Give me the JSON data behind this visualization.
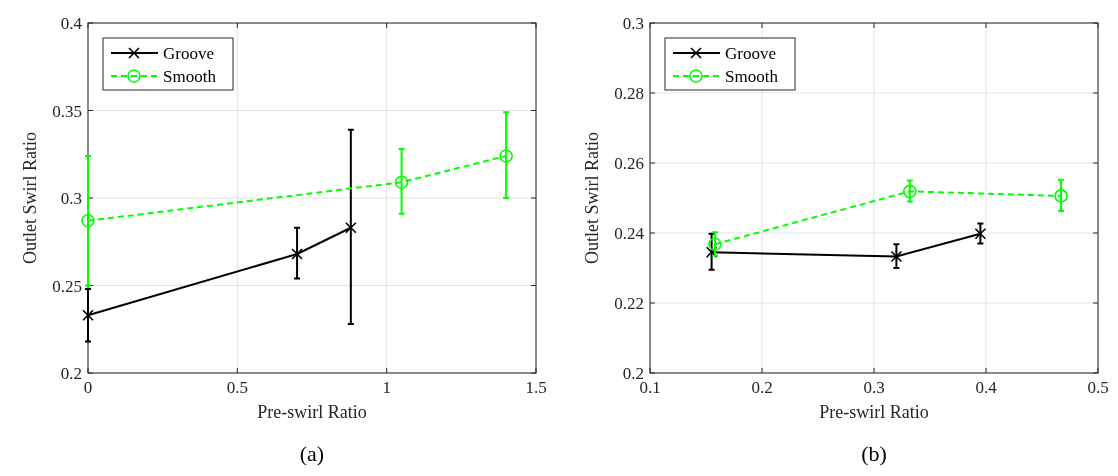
{
  "chart_data": [
    {
      "type": "line",
      "xlabel": "Pre-swirl Ratio",
      "ylabel": "Outlet Swirl Ratio",
      "annotations": [
        "(a)"
      ],
      "xlim": [
        0,
        1.5
      ],
      "xticks": [
        0,
        0.5,
        1,
        1.5
      ],
      "ylim": [
        0.2,
        0.4
      ],
      "yticks": [
        0.2,
        0.25,
        0.3,
        0.35,
        0.4
      ],
      "grid": true,
      "legend": "top left",
      "series": [
        {
          "name": "Groove",
          "color": "#000000",
          "marker": "cross",
          "line_style": "solid",
          "x": [
            0,
            0.7,
            0.88
          ],
          "values": [
            0.233,
            0.268,
            0.283
          ],
          "errors": [
            [
              0.218,
              0.248
            ],
            [
              0.254,
              0.283
            ],
            [
              0.228,
              0.339
            ]
          ]
        },
        {
          "name": "Smooth",
          "color": "#00ff00",
          "marker": "circle",
          "line_style": "dashed",
          "x": [
            0,
            1.05,
            1.4
          ],
          "values": [
            0.287,
            0.309,
            0.324
          ],
          "errors": [
            [
              0.25,
              0.324
            ],
            [
              0.291,
              0.328
            ],
            [
              0.3,
              0.349
            ]
          ]
        }
      ]
    },
    {
      "type": "line",
      "xlabel": "Pre-swirl Ratio",
      "ylabel": "Outlet Swirl Ratio",
      "annotations": [
        "(b)"
      ],
      "xlim": [
        0.1,
        0.5
      ],
      "xticks": [
        0.1,
        0.2,
        0.3,
        0.4,
        0.5
      ],
      "ylim": [
        0.2,
        0.3
      ],
      "yticks": [
        0.2,
        0.22,
        0.24,
        0.26,
        0.28,
        0.3
      ],
      "grid": true,
      "legend": "top left",
      "series": [
        {
          "name": "Groove",
          "color": "#000000",
          "marker": "cross",
          "line_style": "solid",
          "x": [
            0.155,
            0.32,
            0.395
          ],
          "values": [
            0.2345,
            0.2333,
            0.2398
          ],
          "errors": [
            [
              0.2295,
              0.2398
            ],
            [
              0.23,
              0.2368
            ],
            [
              0.237,
              0.2427
            ]
          ]
        },
        {
          "name": "Smooth",
          "color": "#00ff00",
          "marker": "circle",
          "line_style": "dashed",
          "x": [
            0.158,
            0.332,
            0.467
          ],
          "values": [
            0.2368,
            0.2519,
            0.2506
          ],
          "errors": [
            [
              0.2335,
              0.2402
            ],
            [
              0.249,
              0.255
            ],
            [
              0.2463,
              0.2552
            ]
          ]
        }
      ]
    }
  ]
}
